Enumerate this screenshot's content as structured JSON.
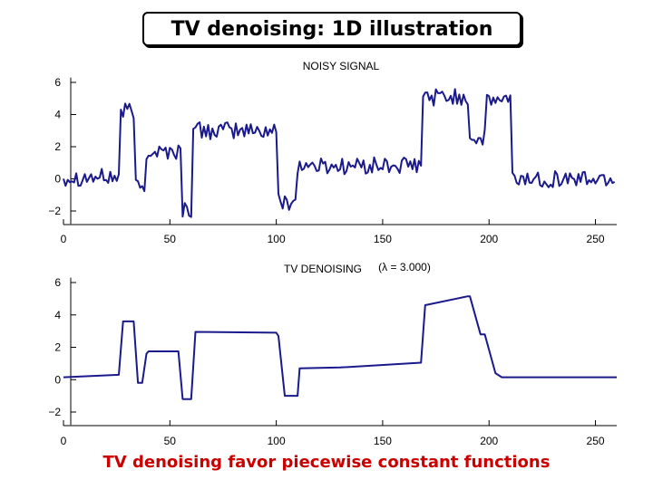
{
  "slide": {
    "title": "TV denoising: 1D illustration",
    "caption": "TV denoising favor piecewise constant functions"
  },
  "chart_data": [
    {
      "type": "line",
      "title": "NOISY SIGNAL",
      "xlabel": "",
      "ylabel": "",
      "xlim": [
        0,
        260
      ],
      "ylim": [
        -2.8,
        6.3
      ],
      "xticks": [
        0,
        50,
        100,
        150,
        200,
        250
      ],
      "yticks": [
        -2,
        0,
        2,
        4,
        6
      ],
      "ytick_labels": [
        "−2",
        "0",
        "2",
        "4",
        "6"
      ],
      "grid": false,
      "line_color": "#1a1a8c",
      "segments": [
        {
          "x_start": 0,
          "x_end": 26,
          "level": 0.1
        },
        {
          "x_start": 27,
          "x_end": 33,
          "level": 4.2
        },
        {
          "x_start": 34,
          "x_end": 38,
          "level": -0.5
        },
        {
          "x_start": 39,
          "x_end": 55,
          "level": 1.7
        },
        {
          "x_start": 56,
          "x_end": 60,
          "level": -1.9
        },
        {
          "x_start": 61,
          "x_end": 100,
          "level": 3.0
        },
        {
          "x_start": 101,
          "x_end": 109,
          "level": -1.4
        },
        {
          "x_start": 110,
          "x_end": 168,
          "level": 0.8
        },
        {
          "x_start": 169,
          "x_end": 190,
          "level": 5.1
        },
        {
          "x_start": 191,
          "x_end": 198,
          "level": 2.5
        },
        {
          "x_start": 199,
          "x_end": 210,
          "level": 4.9
        },
        {
          "x_start": 211,
          "x_end": 259,
          "level": 0.0
        }
      ],
      "noise_amplitude": 0.55
    },
    {
      "type": "line",
      "title": "TV DENOISING",
      "annotation": "(λ = 3.000)",
      "xlabel": "",
      "ylabel": "",
      "xlim": [
        0,
        260
      ],
      "ylim": [
        -2.8,
        6.3
      ],
      "xticks": [
        0,
        50,
        100,
        150,
        200,
        250
      ],
      "yticks": [
        -2,
        0,
        2,
        4,
        6
      ],
      "ytick_labels": [
        "−2",
        "0",
        "2",
        "4",
        "6"
      ],
      "grid": false,
      "line_color": "#1a1a8c",
      "series": [
        {
          "x": [
            0,
            26,
            28,
            33,
            35,
            37,
            39,
            40,
            54,
            56,
            60,
            62,
            100,
            101,
            104,
            110,
            111,
            130,
            168,
            170,
            190,
            191,
            196,
            198,
            203,
            206,
            260
          ],
          "y": [
            0.15,
            0.3,
            3.6,
            3.6,
            -0.2,
            -0.2,
            1.6,
            1.75,
            1.75,
            -1.2,
            -1.2,
            2.95,
            2.9,
            2.7,
            -1.0,
            -1.0,
            0.7,
            0.75,
            1.05,
            4.6,
            5.15,
            5.15,
            2.8,
            2.8,
            0.4,
            0.15,
            0.15
          ]
        }
      ]
    }
  ]
}
